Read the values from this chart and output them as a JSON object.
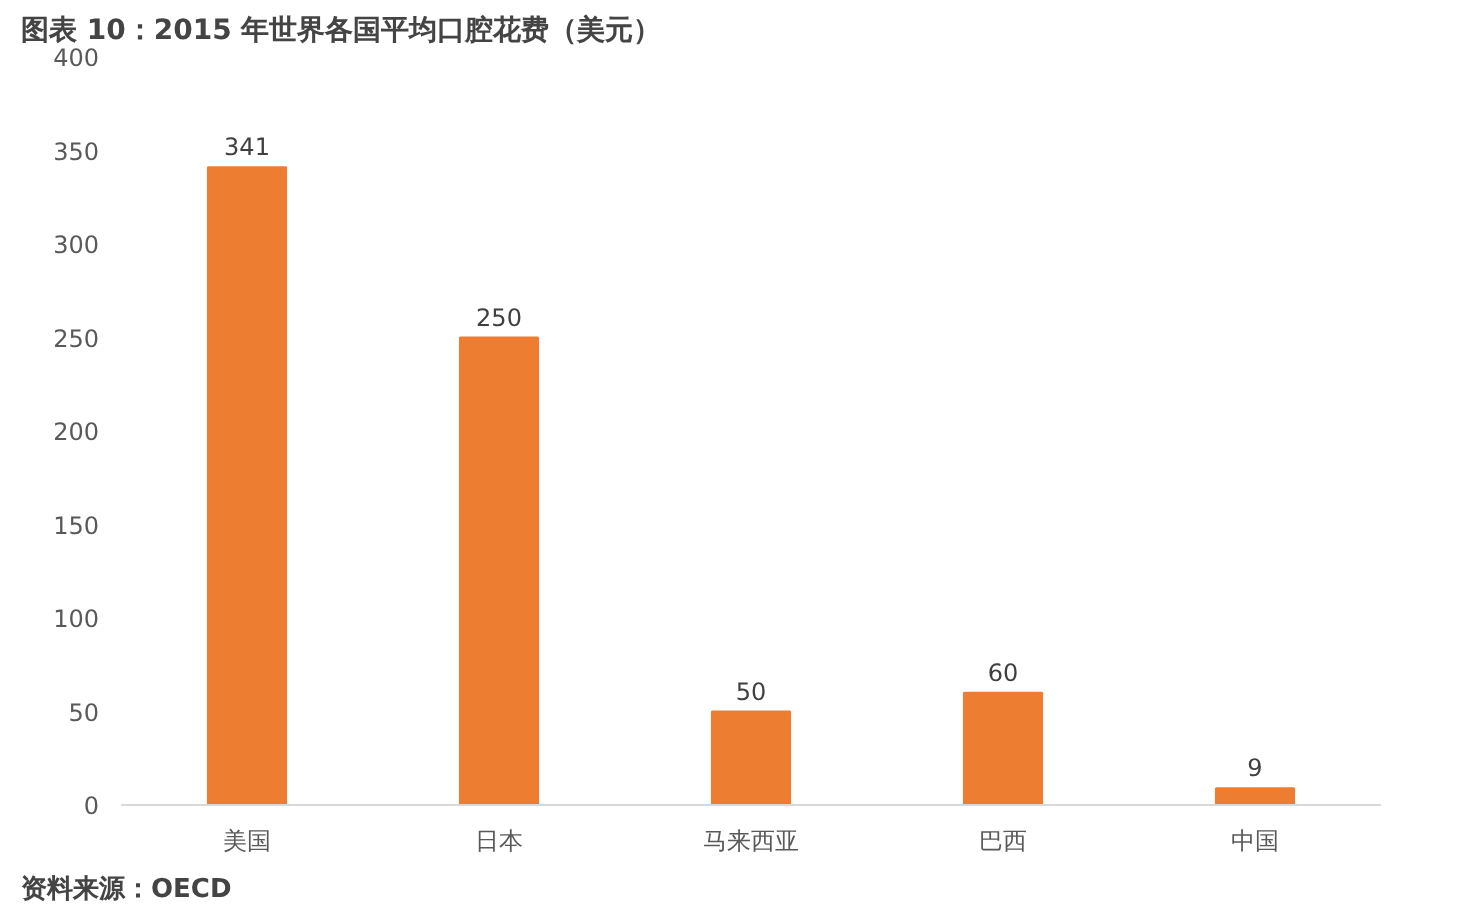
{
  "chart_data": {
    "type": "bar",
    "title": "图表 10：2015 年世界各国平均口腔花费（美元）",
    "categories": [
      "美国",
      "日本",
      "马来西亚",
      "巴西",
      "中国"
    ],
    "values": [
      341,
      250,
      50,
      60,
      9
    ],
    "color": "#ed7d31",
    "ylim": [
      0,
      400
    ],
    "yticks": [
      0,
      50,
      100,
      150,
      200,
      250,
      300,
      350,
      400
    ],
    "grid": false,
    "data_labels": true,
    "annotations": [
      "资料来源：OECD"
    ]
  }
}
